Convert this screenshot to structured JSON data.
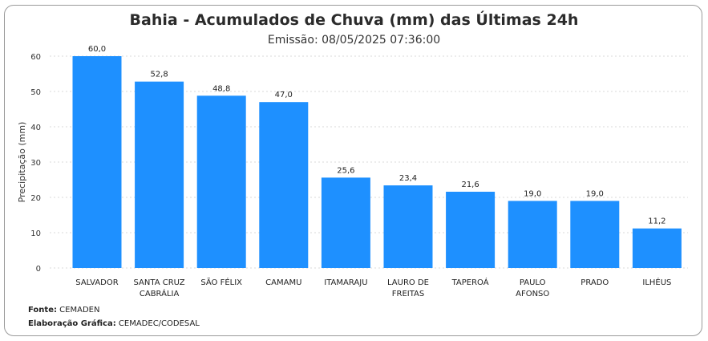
{
  "header": {
    "title": "Bahia - Acumulados de Chuva (mm) das Últimas 24h",
    "subtitle": "Emissão: 08/05/2025 07:36:00"
  },
  "footer": {
    "source_label": "Fonte:",
    "source_value": "CEMADEN",
    "credit_label": "Elaboração Gráfica:",
    "credit_value": "CEMADEC/CODESAL"
  },
  "colors": {
    "bar": "#1E90FF",
    "grid": "#d9d9d9"
  },
  "chart_data": {
    "type": "bar",
    "title": "Bahia - Acumulados de Chuva (mm) das Últimas 24h",
    "subtitle": "Emissão: 08/05/2025 07:36:00",
    "xlabel": "",
    "ylabel": "Precipitação (mm)",
    "ylim": [
      0,
      60
    ],
    "yticks": [
      0,
      10,
      20,
      30,
      40,
      50,
      60
    ],
    "grid": true,
    "categories": [
      [
        "SALVADOR"
      ],
      [
        "SANTA CRUZ",
        "CABRÁLIA"
      ],
      [
        "SÃO FÉLIX"
      ],
      [
        "CAMAMU"
      ],
      [
        "ITAMARAJU"
      ],
      [
        "LAURO DE",
        "FREITAS"
      ],
      [
        "TAPEROÁ"
      ],
      [
        "PAULO",
        "AFONSO"
      ],
      [
        "PRADO"
      ],
      [
        "ILHÉUS"
      ]
    ],
    "values": [
      60.0,
      52.8,
      48.8,
      47.0,
      25.6,
      23.4,
      21.6,
      19.0,
      19.0,
      11.2
    ],
    "value_labels": [
      "60,0",
      "52,8",
      "48,8",
      "47,0",
      "25,6",
      "23,4",
      "21,6",
      "19,0",
      "19,0",
      "11,2"
    ]
  }
}
